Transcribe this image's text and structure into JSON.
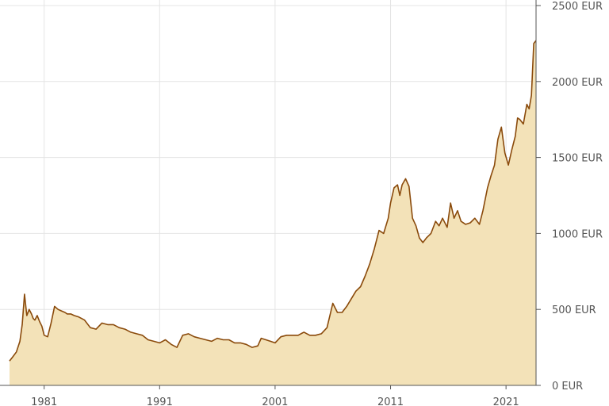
{
  "chart_data": {
    "type": "area",
    "title": "",
    "xlabel": "",
    "ylabel": "",
    "x_ticks": [
      "1981",
      "1991",
      "2001",
      "2011",
      "2021"
    ],
    "y_ticks": [
      "0 EUR",
      "500 EUR",
      "1000 EUR",
      "1500 EUR",
      "2000 EUR",
      "2500 EUR"
    ],
    "xlim": [
      1978.0,
      2023.6
    ],
    "ylim": [
      0,
      2500
    ],
    "grid": true,
    "y_axis_side": "right",
    "colors": {
      "line": "#8a4a0b",
      "fill": "#f3e2b8",
      "grid": "#e4e4e4",
      "axis": "#555555"
    },
    "series": [
      {
        "x": [
          1978.0,
          1978.3,
          1978.6,
          1978.9,
          1979.1,
          1979.3,
          1979.5,
          1979.7,
          1979.9,
          1980.05,
          1980.2,
          1980.4,
          1980.6,
          1980.8,
          1981.0,
          1981.3,
          1981.6,
          1981.9,
          1982.2,
          1982.5,
          1982.8,
          1983.0,
          1983.3,
          1983.6,
          1984.0,
          1984.5,
          1985.0,
          1985.5,
          1986.0,
          1986.5,
          1987.0,
          1987.5,
          1988.0,
          1988.5,
          1989.0,
          1989.5,
          1990.0,
          1990.5,
          1991.0,
          1991.5,
          1992.0,
          1992.5,
          1993.0,
          1993.5,
          1994.0,
          1994.5,
          1995.0,
          1995.5,
          1996.0,
          1996.5,
          1997.0,
          1997.5,
          1998.0,
          1998.5,
          1999.0,
          1999.5,
          1999.8,
          2000.2,
          2000.6,
          2001.0,
          2001.5,
          2002.0,
          2002.5,
          2003.0,
          2003.5,
          2004.0,
          2004.5,
          2005.0,
          2005.5,
          2006.0,
          2006.4,
          2006.8,
          2007.2,
          2007.6,
          2008.0,
          2008.4,
          2008.8,
          2009.2,
          2009.6,
          2010.0,
          2010.4,
          2010.8,
          2011.0,
          2011.3,
          2011.6,
          2011.8,
          2012.0,
          2012.3,
          2012.6,
          2012.9,
          2013.2,
          2013.5,
          2013.8,
          2014.1,
          2014.5,
          2014.9,
          2015.2,
          2015.5,
          2015.9,
          2016.2,
          2016.5,
          2016.8,
          2017.1,
          2017.5,
          2017.9,
          2018.3,
          2018.7,
          2019.0,
          2019.4,
          2019.7,
          2020.0,
          2020.3,
          2020.6,
          2020.9,
          2021.2,
          2021.5,
          2021.8,
          2022.0,
          2022.2,
          2022.5,
          2022.8,
          2023.0,
          2023.2,
          2023.4,
          2023.6
        ],
        "values": [
          160,
          190,
          220,
          290,
          400,
          600,
          460,
          500,
          470,
          440,
          430,
          460,
          420,
          390,
          330,
          320,
          410,
          520,
          500,
          490,
          480,
          470,
          470,
          460,
          450,
          430,
          380,
          370,
          410,
          400,
          400,
          380,
          370,
          350,
          340,
          330,
          300,
          290,
          280,
          300,
          270,
          250,
          330,
          340,
          320,
          310,
          300,
          290,
          310,
          300,
          300,
          280,
          280,
          270,
          250,
          260,
          310,
          300,
          290,
          280,
          320,
          330,
          330,
          330,
          350,
          330,
          330,
          340,
          380,
          540,
          480,
          480,
          520,
          570,
          620,
          650,
          720,
          800,
          900,
          1020,
          1000,
          1100,
          1200,
          1300,
          1320,
          1250,
          1320,
          1360,
          1310,
          1100,
          1050,
          970,
          940,
          970,
          1000,
          1080,
          1050,
          1100,
          1040,
          1200,
          1100,
          1150,
          1080,
          1060,
          1070,
          1100,
          1060,
          1150,
          1300,
          1380,
          1450,
          1620,
          1700,
          1530,
          1450,
          1550,
          1640,
          1760,
          1750,
          1720,
          1850,
          1820,
          1910,
          2250,
          2270
        ]
      }
    ]
  }
}
